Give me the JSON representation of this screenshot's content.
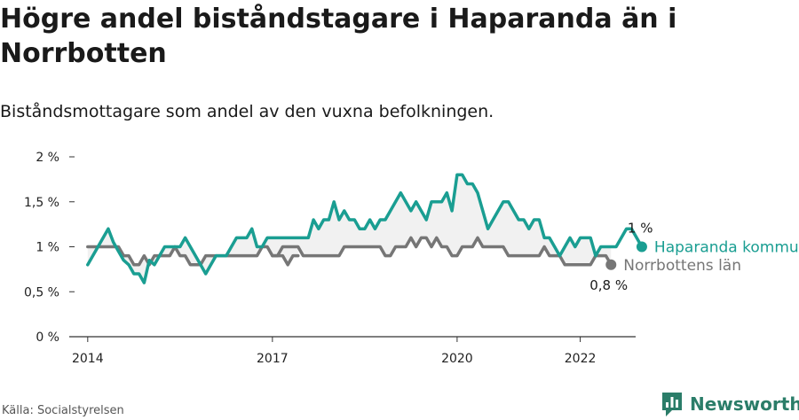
{
  "title": "Högre andel biståndstagare i Haparanda än i Norrbotten",
  "subtitle": "Biståndsmottagare som andel av den vuxna befolkningen.",
  "source": "Källa: Socialstyrelsen",
  "brand": {
    "name": "Newsworthy",
    "logo_icon": "bar-chart-logo-icon",
    "color": "#2b7d69"
  },
  "chart_data": {
    "type": "line",
    "ylim": [
      0,
      2
    ],
    "yticks": [
      0,
      0.5,
      1,
      1.5,
      2
    ],
    "ytick_labels": [
      "0 %",
      "0,5 %",
      "1 %",
      "1,5 %",
      "2 %"
    ],
    "xlim": [
      2013.7,
      2022.9
    ],
    "xticks": [
      2014,
      2017,
      2020,
      2022
    ],
    "xtick_labels": [
      "2014",
      "2017",
      "2020",
      "2022"
    ],
    "grid": false,
    "series": [
      {
        "name": "Haparanda kommun",
        "color": "#1a9e92",
        "end_label": "1 %",
        "x_start": 2014.0,
        "step_months": 1,
        "values": [
          0.8,
          0.9,
          1.0,
          1.1,
          1.2,
          1.05,
          0.95,
          0.85,
          0.8,
          0.7,
          0.7,
          0.6,
          0.85,
          0.8,
          0.9,
          1.0,
          1.0,
          1.0,
          1.0,
          1.1,
          1.0,
          0.9,
          0.8,
          0.7,
          0.8,
          0.9,
          0.9,
          0.9,
          1.0,
          1.1,
          1.1,
          1.1,
          1.2,
          1.0,
          1.0,
          1.1,
          1.1,
          1.1,
          1.1,
          1.1,
          1.1,
          1.1,
          1.1,
          1.1,
          1.3,
          1.2,
          1.3,
          1.3,
          1.5,
          1.3,
          1.4,
          1.3,
          1.3,
          1.2,
          1.2,
          1.3,
          1.2,
          1.3,
          1.3,
          1.4,
          1.5,
          1.6,
          1.5,
          1.4,
          1.5,
          1.4,
          1.3,
          1.5,
          1.5,
          1.5,
          1.6,
          1.4,
          1.8,
          1.8,
          1.7,
          1.7,
          1.6,
          1.4,
          1.2,
          1.3,
          1.4,
          1.5,
          1.5,
          1.4,
          1.3,
          1.3,
          1.2,
          1.3,
          1.3,
          1.1,
          1.1,
          1.0,
          0.9,
          1.0,
          1.1,
          1.0,
          1.1,
          1.1,
          1.1,
          0.9,
          1.0,
          1.0,
          1.0,
          1.0,
          1.1,
          1.2,
          1.2,
          1.1,
          1.0
        ]
      },
      {
        "name": "Norrbottens län",
        "color": "#767676",
        "end_label": "0,8 %",
        "segments": [
          {
            "x_start": 2014.0,
            "step_months": 1,
            "values": [
              1.0,
              1.0,
              1.0,
              1.0,
              1.0,
              1.0,
              1.0,
              0.9,
              0.9,
              0.8,
              0.8,
              0.9,
              0.8,
              0.9,
              0.9,
              0.9,
              0.9,
              1.0,
              0.9,
              0.9,
              0.8,
              0.8,
              0.8,
              0.9,
              0.9,
              0.9,
              0.9,
              0.9,
              0.9,
              0.9,
              0.9,
              0.9,
              0.9,
              0.9,
              1.0,
              1.0,
              0.9,
              0.9,
              0.9,
              0.8,
              0.9,
              0.9
            ]
          },
          {
            "x_start": 2017.0,
            "step_months": 1,
            "values": [
              0.9,
              0.9,
              1.0,
              1.0,
              1.0,
              1.0,
              0.9,
              0.9,
              0.9,
              0.9,
              0.9,
              0.9,
              0.9,
              0.9,
              1.0,
              1.0,
              1.0,
              1.0,
              1.0,
              1.0,
              1.0,
              1.0,
              0.9,
              0.9,
              1.0,
              1.0,
              1.0,
              1.1,
              1.0,
              1.1,
              1.1,
              1.0,
              1.1,
              1.0,
              1.0,
              0.9,
              0.9,
              1.0,
              1.0,
              1.0,
              1.1,
              1.0,
              1.0,
              1.0,
              1.0,
              1.0,
              0.9,
              0.9,
              0.9,
              0.9,
              0.9,
              0.9,
              0.9,
              1.0,
              0.9,
              0.9,
              0.9,
              0.8,
              0.8,
              0.8,
              0.8,
              0.8,
              0.8,
              0.9,
              0.9,
              0.9,
              0.8
            ]
          }
        ]
      }
    ]
  }
}
